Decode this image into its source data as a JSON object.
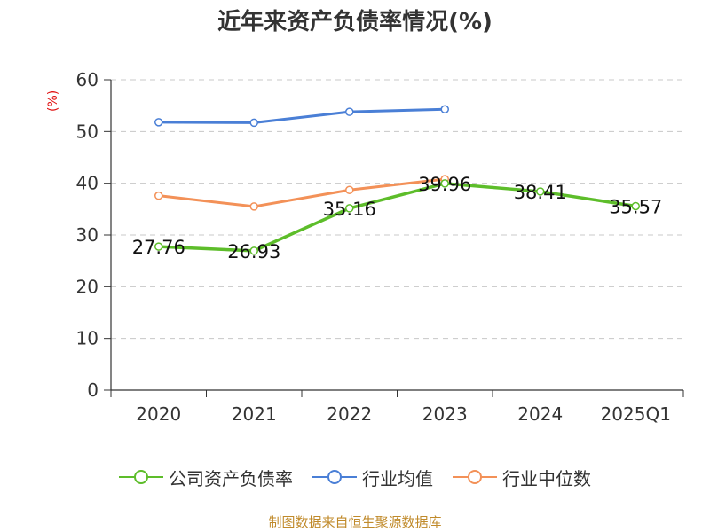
{
  "chart_data": {
    "type": "line",
    "title": "近年来资产负债率情况(%)",
    "unit_label": "(%)",
    "source_note": "制图数据来自恒生聚源数据库",
    "categories": [
      "2020",
      "2021",
      "2022",
      "2023",
      "2024",
      "2025Q1"
    ],
    "ylim": [
      0,
      60
    ],
    "yticks": [
      0,
      10,
      20,
      30,
      40,
      50,
      60
    ],
    "grid": true,
    "legend_position": "bottom",
    "series": [
      {
        "name": "公司资产负债率",
        "color": "#5dbd2a",
        "values": [
          27.76,
          26.93,
          35.16,
          39.96,
          38.41,
          35.57
        ],
        "labels": [
          "27.76",
          "26.93",
          "35.16",
          "39.96",
          "38.41",
          "35.57"
        ]
      },
      {
        "name": "行业均值",
        "color": "#4a7fd6",
        "values": [
          51.8,
          51.7,
          53.8,
          54.3,
          null,
          null
        ],
        "labels": null
      },
      {
        "name": "行业中位数",
        "color": "#f39158",
        "values": [
          37.6,
          35.5,
          38.7,
          40.8,
          null,
          null
        ],
        "labels": null
      }
    ]
  }
}
